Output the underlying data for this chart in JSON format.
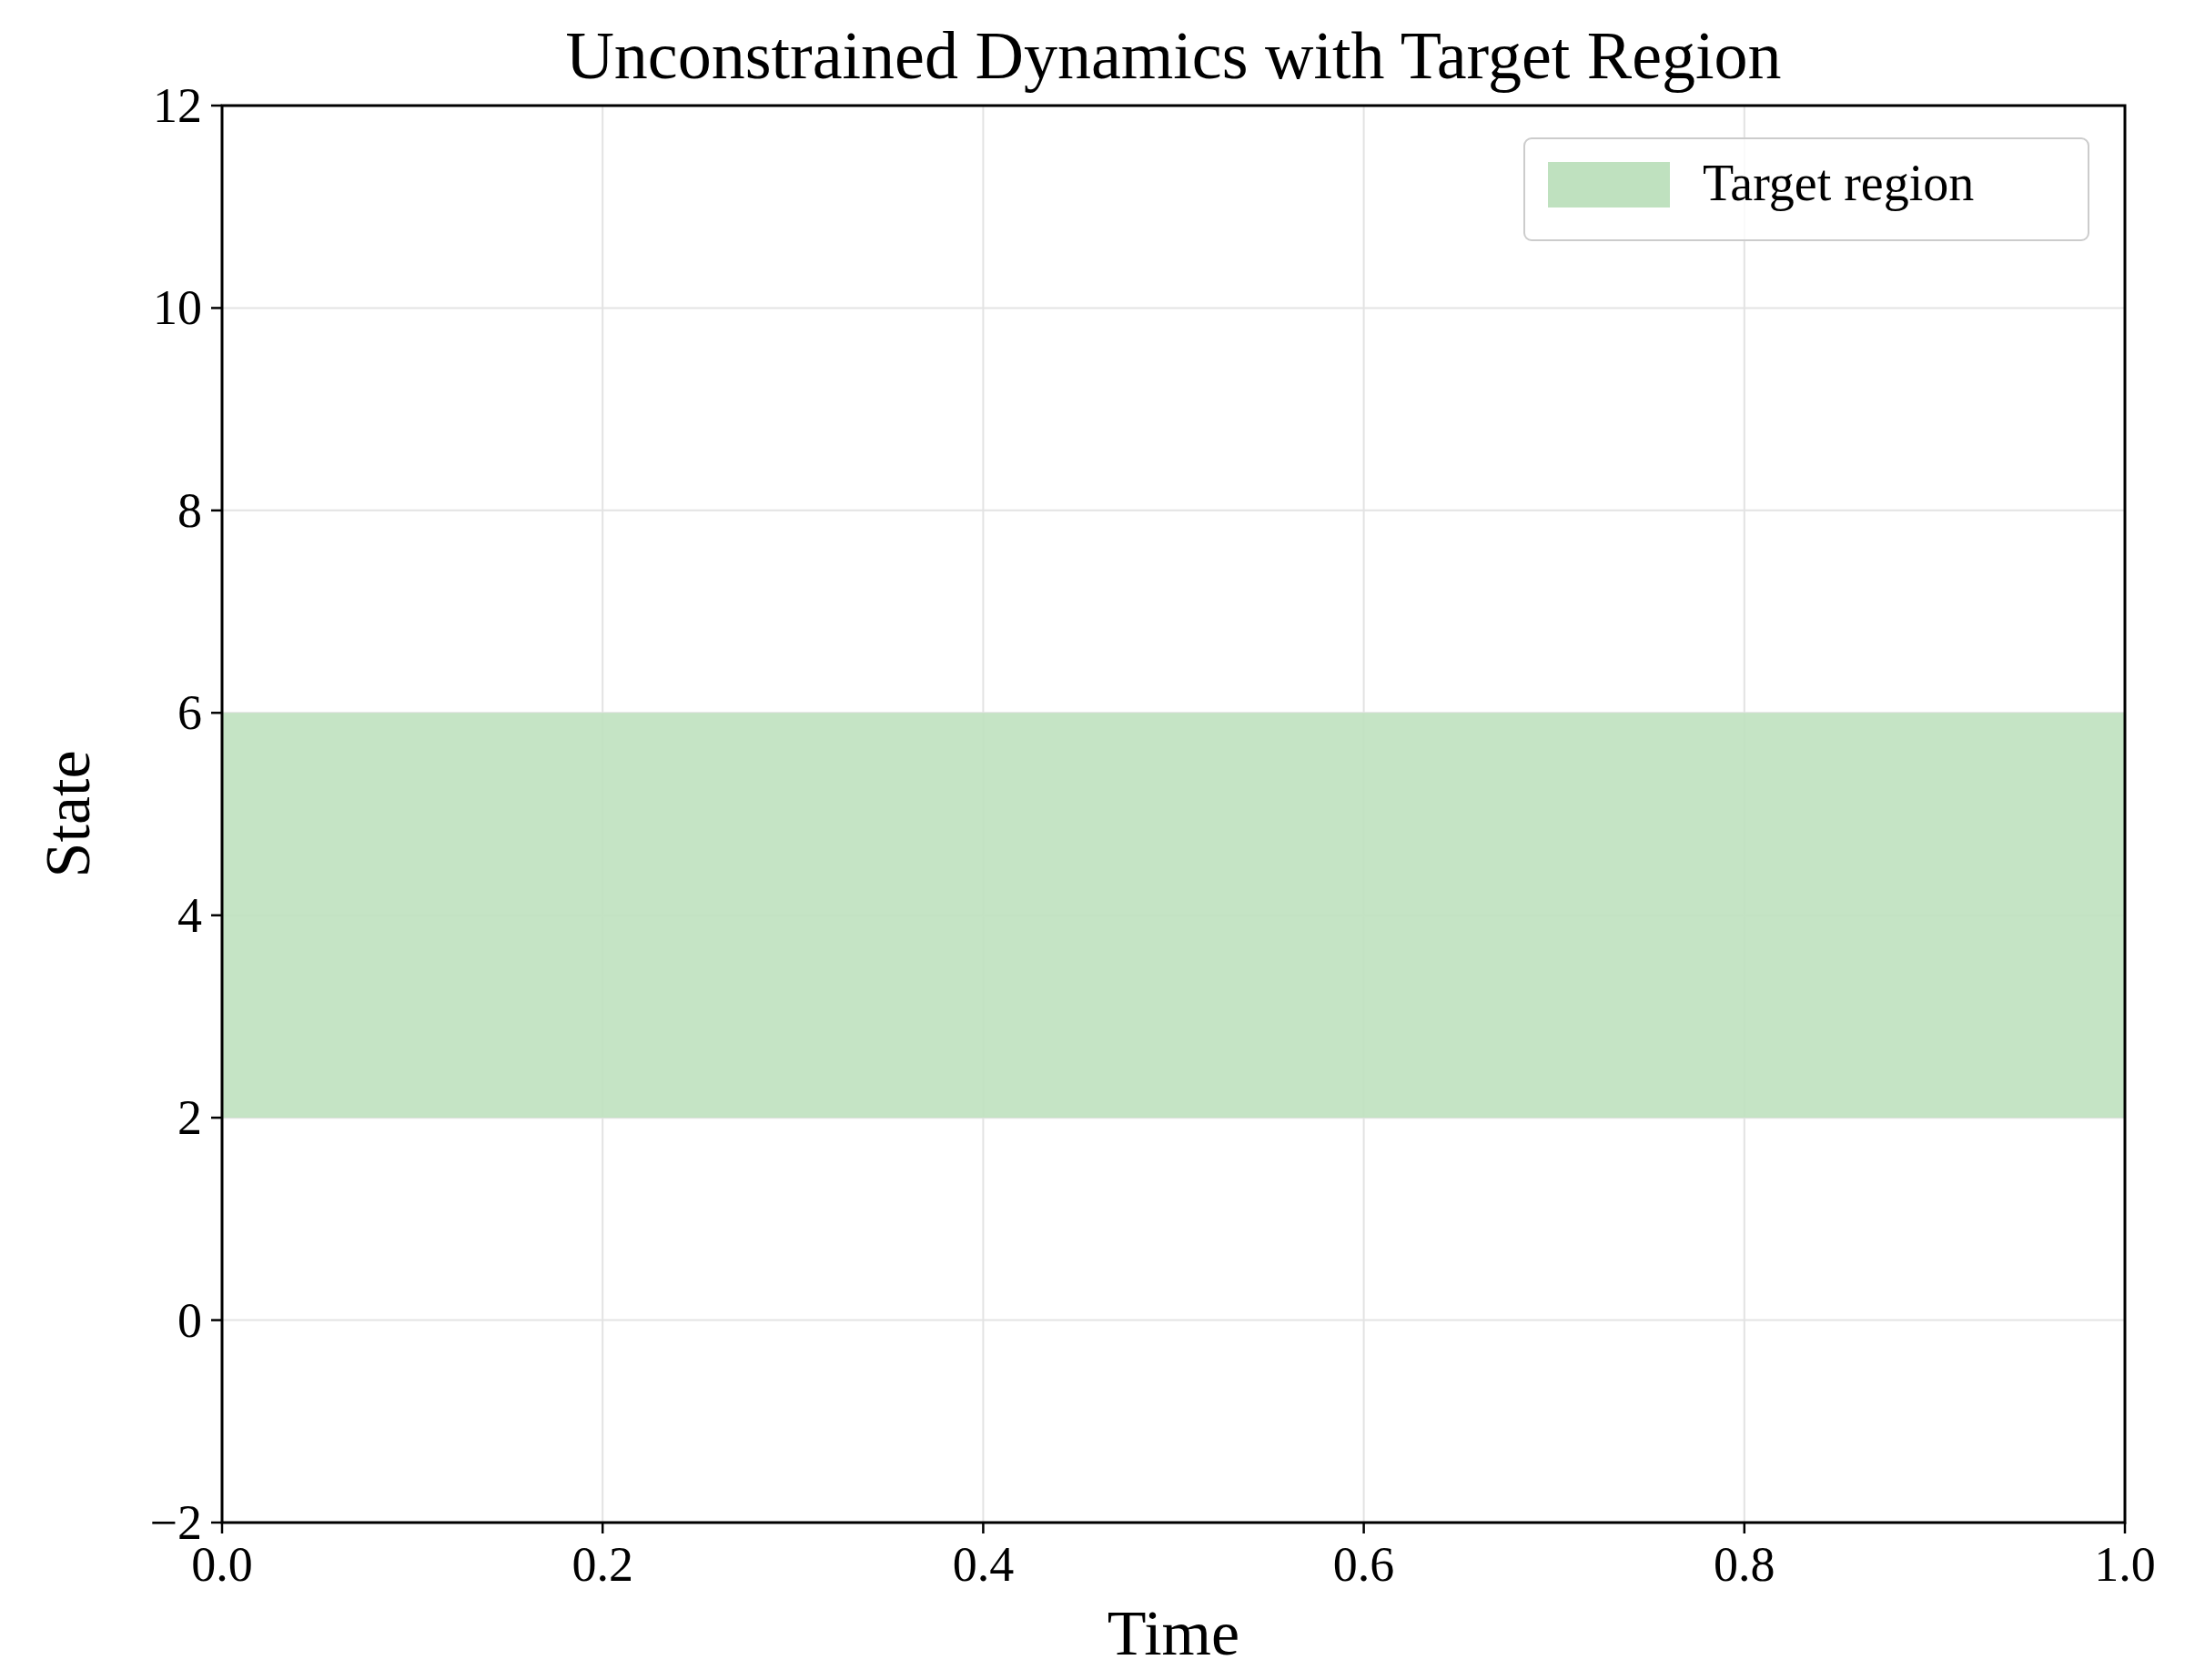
{
  "chart_data": {
    "type": "line",
    "title": "Unconstrained Dynamics with Target Region",
    "xlabel": "Time",
    "ylabel": "State",
    "xlim": [
      0,
      1
    ],
    "ylim": [
      -2,
      12
    ],
    "xticks": [
      {
        "value": 0,
        "label": "0.0"
      },
      {
        "value": 0.2,
        "label": "0.2"
      },
      {
        "value": 0.4,
        "label": "0.4"
      },
      {
        "value": 0.6,
        "label": "0.6"
      },
      {
        "value": 0.8,
        "label": "0.8"
      },
      {
        "value": 1,
        "label": "1.0"
      }
    ],
    "yticks": [
      {
        "value": -2,
        "label": "−2"
      },
      0,
      2,
      4,
      6,
      8,
      10,
      12
    ],
    "bands": [
      {
        "axis": "y",
        "from": 2,
        "to": 6,
        "label": "Target region",
        "color": "#bfe1bf"
      }
    ],
    "grid": true,
    "legend": "top right"
  }
}
